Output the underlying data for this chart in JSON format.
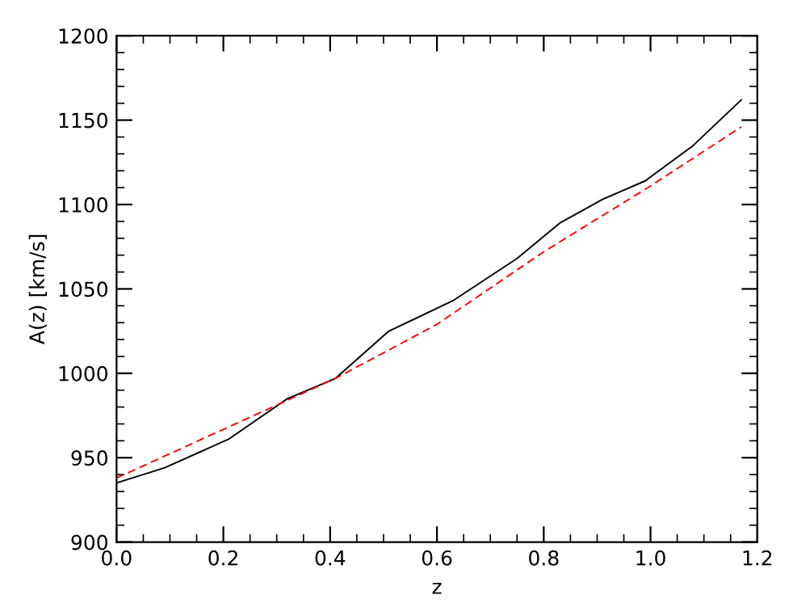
{
  "chart_data": {
    "type": "line",
    "xlabel": "z",
    "ylabel": "A(z) [km/s]",
    "xlim": [
      0.0,
      1.2
    ],
    "xticks": [
      {
        "value": 0.0,
        "label": "0.0"
      },
      0.2,
      0.4,
      0.6,
      0.8,
      {
        "value": 1.0,
        "label": "1.0"
      },
      1.2
    ],
    "ylim": [
      900,
      1200
    ],
    "yticks": [
      900,
      950,
      1000,
      1050,
      1100,
      1150,
      1200
    ],
    "grid": false,
    "legend": false,
    "series": [
      {
        "color": "#000000",
        "line_style": "solid",
        "x": [
          0.0,
          0.09,
          0.21,
          0.32,
          0.41,
          0.51,
          0.63,
          0.75,
          0.83,
          0.91,
          0.99,
          1.08,
          1.17
        ],
        "values": [
          935,
          944,
          961,
          985,
          997,
          1025,
          1043,
          1068,
          1089,
          1103,
          1114,
          1135,
          1162
        ]
      },
      {
        "color": "#ff0000",
        "line_style": "dashed",
        "x": [
          0.0,
          0.41,
          0.6,
          0.8,
          1.0,
          1.17
        ],
        "values": [
          938,
          997,
          1029,
          1072,
          1111,
          1146
        ]
      }
    ]
  }
}
